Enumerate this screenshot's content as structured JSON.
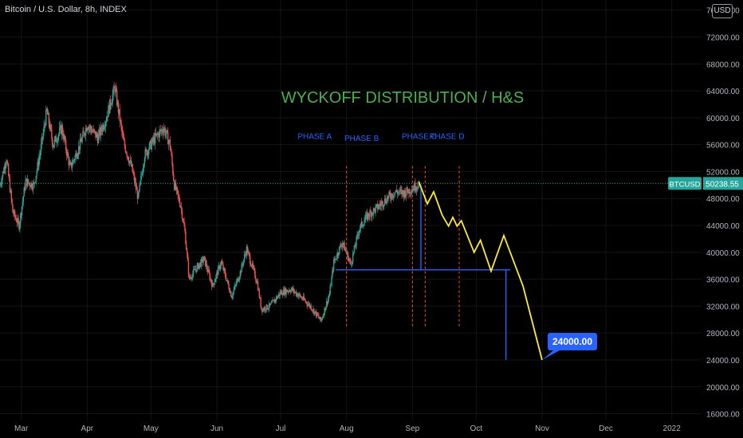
{
  "header": {
    "symbol_title": "Bitcoin / U.S. Dollar, 8h, INDEX",
    "currency_badge": "USD"
  },
  "colors": {
    "background": "#000000",
    "candle_up": "#26a69a",
    "candle_down": "#ef5350",
    "projection": "#ffeb3b",
    "annotation_blue": "#2962ff",
    "phase_line": "#ff5722",
    "headline": "#4caf50",
    "price_line": "#26a69a",
    "target_label": "#2962ff"
  },
  "chart_data": {
    "type": "candlestick",
    "title": "WYCKOFF DISTRIBUTION / H&S",
    "x_ticks": [
      {
        "label": "Mar",
        "date": "2021-03-01"
      },
      {
        "label": "Apr",
        "date": "2021-04-01"
      },
      {
        "label": "May",
        "date": "2021-05-01"
      },
      {
        "label": "Jun",
        "date": "2021-06-01"
      },
      {
        "label": "Jul",
        "date": "2021-07-01"
      },
      {
        "label": "Aug",
        "date": "2021-08-01"
      },
      {
        "label": "Sep",
        "date": "2021-09-01"
      },
      {
        "label": "Oct",
        "date": "2021-10-01"
      },
      {
        "label": "Nov",
        "date": "2021-11-01"
      },
      {
        "label": "Dec",
        "date": "2021-12-01"
      },
      {
        "label": "2022",
        "date": "2022-01-01"
      }
    ],
    "y_ticks": [
      "16000.00",
      "20000.00",
      "24000.00",
      "28000.00",
      "32000.00",
      "36000.00",
      "40000.00",
      "44000.00",
      "48000.00",
      "52000.00",
      "56000.00",
      "60000.00",
      "64000.00",
      "68000.00",
      "72000.00",
      "76000.00"
    ],
    "ylim": [
      15000,
      77500
    ],
    "xlim": [
      "2021-02-19",
      "2022-01-15"
    ],
    "price_path": [
      [
        "2021-02-19",
        50000
      ],
      [
        "2021-02-22",
        54000
      ],
      [
        "2021-02-25",
        46000
      ],
      [
        "2021-02-28",
        44000
      ],
      [
        "2021-03-03",
        50500
      ],
      [
        "2021-03-07",
        50000
      ],
      [
        "2021-03-10",
        55000
      ],
      [
        "2021-03-13",
        61000
      ],
      [
        "2021-03-16",
        56000
      ],
      [
        "2021-03-20",
        58500
      ],
      [
        "2021-03-24",
        52500
      ],
      [
        "2021-03-28",
        55500
      ],
      [
        "2021-04-01",
        59000
      ],
      [
        "2021-04-06",
        57000
      ],
      [
        "2021-04-10",
        60000
      ],
      [
        "2021-04-14",
        64500
      ],
      [
        "2021-04-18",
        56500
      ],
      [
        "2021-04-22",
        52500
      ],
      [
        "2021-04-25",
        48000
      ],
      [
        "2021-04-28",
        54500
      ],
      [
        "2021-05-03",
        57000
      ],
      [
        "2021-05-07",
        58500
      ],
      [
        "2021-05-10",
        56000
      ],
      [
        "2021-05-12",
        50000
      ],
      [
        "2021-05-15",
        47000
      ],
      [
        "2021-05-17",
        43000
      ],
      [
        "2021-05-19",
        36000
      ],
      [
        "2021-05-22",
        37500
      ],
      [
        "2021-05-26",
        39000
      ],
      [
        "2021-05-30",
        35000
      ],
      [
        "2021-06-03",
        38500
      ],
      [
        "2021-06-08",
        33500
      ],
      [
        "2021-06-12",
        37000
      ],
      [
        "2021-06-15",
        40500
      ],
      [
        "2021-06-20",
        35500
      ],
      [
        "2021-06-22",
        31500
      ],
      [
        "2021-06-26",
        32000
      ],
      [
        "2021-07-01",
        34000
      ],
      [
        "2021-07-06",
        34500
      ],
      [
        "2021-07-10",
        33500
      ],
      [
        "2021-07-15",
        32000
      ],
      [
        "2021-07-20",
        29800
      ],
      [
        "2021-07-24",
        33800
      ],
      [
        "2021-07-26",
        38500
      ],
      [
        "2021-07-30",
        41500
      ],
      [
        "2021-08-03",
        38200
      ],
      [
        "2021-08-07",
        43500
      ],
      [
        "2021-08-11",
        45500
      ],
      [
        "2021-08-15",
        46500
      ],
      [
        "2021-08-20",
        48000
      ],
      [
        "2021-08-24",
        49000
      ],
      [
        "2021-08-28",
        48800
      ],
      [
        "2021-09-01",
        49500
      ],
      [
        "2021-09-04",
        50238
      ]
    ],
    "projection_path": [
      [
        "2021-09-04",
        50500
      ],
      [
        "2021-09-08",
        47200
      ],
      [
        "2021-09-11",
        49000
      ],
      [
        "2021-09-15",
        45500
      ],
      [
        "2021-09-18",
        43900
      ],
      [
        "2021-09-20",
        45200
      ],
      [
        "2021-09-22",
        43900
      ],
      [
        "2021-09-24",
        44700
      ],
      [
        "2021-09-30",
        40000
      ],
      [
        "2021-10-03",
        41800
      ],
      [
        "2021-10-08",
        37200
      ],
      [
        "2021-10-14",
        42500
      ],
      [
        "2021-10-23",
        35000
      ],
      [
        "2021-11-01",
        24000
      ]
    ],
    "phases": [
      {
        "label": "PHASE A",
        "label_date": "2021-07-09",
        "label_price": 57300
      },
      {
        "label": "PHASE B",
        "label_date": "2021-07-31",
        "line_dates": [
          "2021-08-01"
        ],
        "label_price": 57000
      },
      {
        "label": "PHASE C",
        "line_dates": [
          "2021-09-01",
          "2021-09-07"
        ],
        "label_date": "2021-08-27",
        "label_price": 57300
      },
      {
        "label": "PHASE D",
        "line_dates": [
          "2021-09-23"
        ],
        "label_date": "2021-09-09",
        "label_price": 57300
      }
    ],
    "horizontal_levels": [
      {
        "price": 37400,
        "from": "2021-07-27",
        "to": "2021-10-17"
      }
    ],
    "measured_moves": [
      {
        "date": "2021-09-05",
        "from": 50000,
        "to": 37400
      },
      {
        "date": "2021-10-15",
        "from": 37400,
        "to": 24000
      }
    ],
    "current_price": {
      "label": "BTCUSD",
      "value": "50238.55",
      "price": 50238.55
    },
    "target": {
      "value": "24000.00",
      "date": "2021-11-01",
      "price": 24000
    }
  }
}
